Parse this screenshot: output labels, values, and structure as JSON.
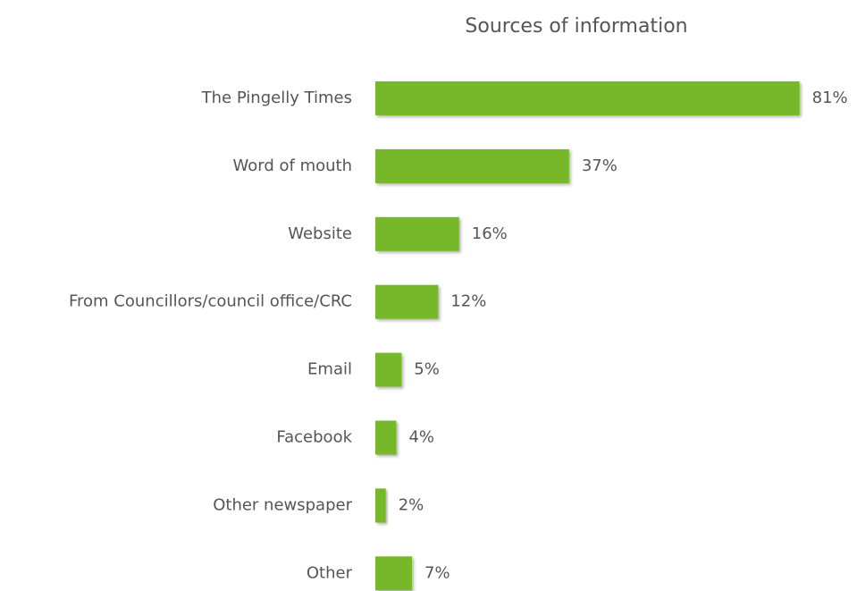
{
  "chart_data": {
    "type": "bar",
    "orientation": "horizontal",
    "title": "Sources of information",
    "categories": [
      "The Pingelly Times",
      "Word of mouth",
      "Website",
      "From Councillors/council office/CRC",
      "Email",
      "Facebook",
      "Other newspaper",
      "Other"
    ],
    "values": [
      81,
      37,
      16,
      12,
      5,
      4,
      2,
      7
    ],
    "value_labels": [
      "81%",
      "37%",
      "16%",
      "12%",
      "5%",
      "4%",
      "2%",
      "7%"
    ],
    "color": "#76b82a"
  }
}
